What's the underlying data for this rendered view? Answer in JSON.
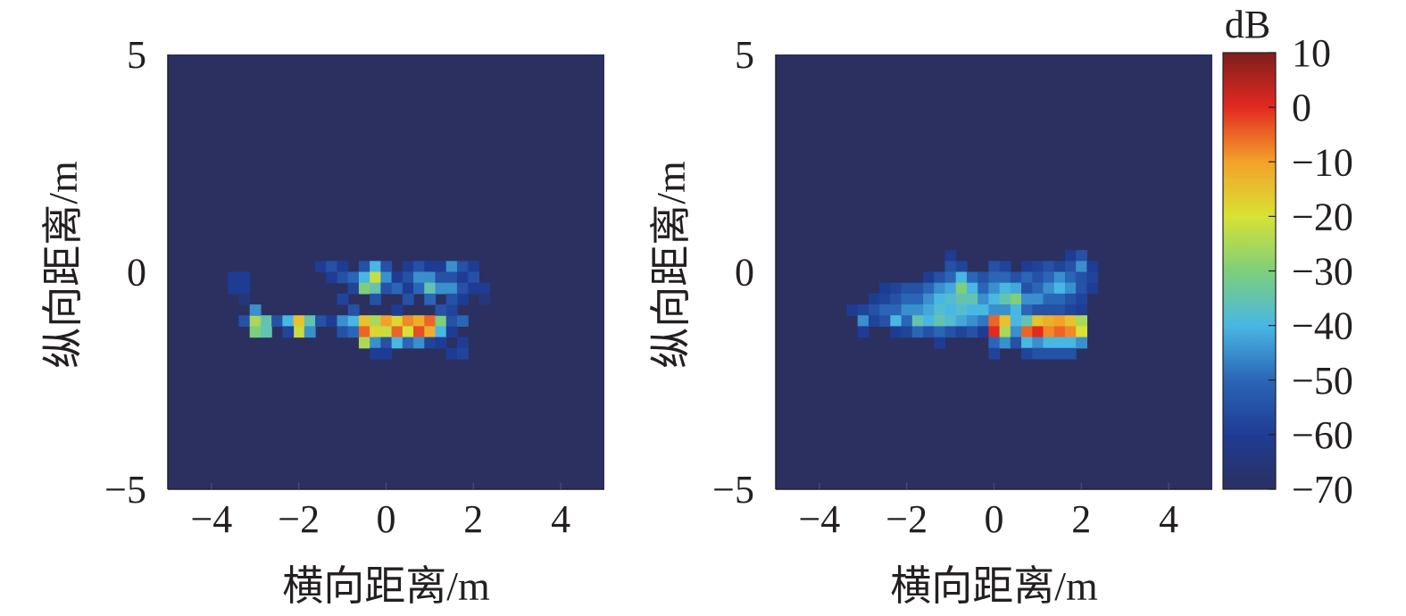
{
  "colorbar": {
    "unit": "dB",
    "min": -70,
    "max": 10,
    "ticks": [
      10,
      0,
      -10,
      -20,
      -30,
      -40,
      -50,
      -60,
      -70
    ],
    "tick_labels": [
      "10",
      "0",
      "−10",
      "−20",
      "−30",
      "−40",
      "−50",
      "−60",
      "−70"
    ],
    "colormap": "jet",
    "colors": [
      "#2b3060",
      "#1f3c94",
      "#2a66b7",
      "#49b7e3",
      "#7ecf7a",
      "#d8e234",
      "#f3a12a",
      "#e22a21",
      "#7e1e1c"
    ],
    "background_color": "#2b3060"
  },
  "chart_data": [
    {
      "type": "heatmap",
      "xlabel": "横向距离/m",
      "ylabel": "纵向距离/m",
      "xlim": [
        -5,
        5
      ],
      "ylim": [
        -5,
        5
      ],
      "xticks": [
        -4,
        -2,
        0,
        2,
        4
      ],
      "xtick_labels": [
        "−4",
        "−2",
        "0",
        "2",
        "4"
      ],
      "yticks": [
        5,
        0,
        -5
      ],
      "ytick_labels": [
        "5",
        "0",
        "−5"
      ],
      "cell_size": 0.25,
      "background_value": -70,
      "cells": [
        [
          -3.5,
          -0.375,
          -60
        ],
        [
          -3.5,
          -0.125,
          -60
        ],
        [
          -3.25,
          -0.375,
          -60
        ],
        [
          -3.25,
          -0.125,
          -60
        ],
        [
          -3.25,
          -0.625,
          -65
        ],
        [
          -3.25,
          -1.125,
          -55
        ],
        [
          -3.0,
          -1.125,
          -25
        ],
        [
          -3.0,
          -1.375,
          -30
        ],
        [
          -2.75,
          -1.125,
          -35
        ],
        [
          -2.75,
          -1.375,
          -35
        ],
        [
          -3.0,
          -0.875,
          -45
        ],
        [
          -2.5,
          -1.125,
          -55
        ],
        [
          -2.25,
          -1.125,
          -40
        ],
        [
          -2.0,
          -1.125,
          -15
        ],
        [
          -2.0,
          -1.375,
          -22
        ],
        [
          -1.75,
          -1.125,
          -35
        ],
        [
          -1.75,
          -1.375,
          -45
        ],
        [
          -1.5,
          -1.125,
          -55
        ],
        [
          -1.25,
          -1.125,
          -60
        ],
        [
          -1.0,
          -1.125,
          -45
        ],
        [
          -1.0,
          -1.375,
          -55
        ],
        [
          -0.75,
          -1.125,
          -40
        ],
        [
          -0.75,
          -1.375,
          -50
        ],
        [
          -0.5,
          -1.125,
          -15
        ],
        [
          -0.5,
          -1.375,
          -5
        ],
        [
          -0.5,
          -1.625,
          -25
        ],
        [
          -0.25,
          -1.125,
          -25
        ],
        [
          -0.25,
          -1.375,
          -18
        ],
        [
          -0.25,
          -1.625,
          -45
        ],
        [
          0.0,
          -1.125,
          -10
        ],
        [
          0.0,
          -1.375,
          -22
        ],
        [
          0.0,
          -1.625,
          -55
        ],
        [
          0.25,
          -1.125,
          -18
        ],
        [
          0.25,
          -1.375,
          -5
        ],
        [
          0.25,
          -1.625,
          -40
        ],
        [
          0.5,
          -1.125,
          -8
        ],
        [
          0.5,
          -1.375,
          -20
        ],
        [
          0.5,
          -1.625,
          -50
        ],
        [
          0.75,
          -1.125,
          -12
        ],
        [
          0.75,
          -1.375,
          -3
        ],
        [
          0.75,
          -1.625,
          -45
        ],
        [
          1.0,
          -1.125,
          -5
        ],
        [
          1.0,
          -1.375,
          -12
        ],
        [
          1.0,
          -1.625,
          -58
        ],
        [
          1.25,
          -1.125,
          -30
        ],
        [
          1.25,
          -1.375,
          -40
        ],
        [
          1.5,
          -1.125,
          -55
        ],
        [
          1.5,
          -1.375,
          -60
        ],
        [
          1.5,
          -0.875,
          -58
        ],
        [
          1.75,
          -1.125,
          -50
        ],
        [
          1.75,
          -1.625,
          -60
        ],
        [
          -1.5,
          0.125,
          -60
        ],
        [
          -1.25,
          0.125,
          -55
        ],
        [
          -1.0,
          0.125,
          -60
        ],
        [
          -1.25,
          -0.125,
          -60
        ],
        [
          -1.0,
          -0.125,
          -55
        ],
        [
          -0.75,
          -0.125,
          -50
        ],
        [
          -0.75,
          -0.375,
          -58
        ],
        [
          -0.5,
          0.125,
          -55
        ],
        [
          -0.5,
          -0.125,
          -40
        ],
        [
          -0.5,
          -0.375,
          -30
        ],
        [
          -0.25,
          0.125,
          -40
        ],
        [
          -0.25,
          -0.125,
          -22
        ],
        [
          -0.25,
          -0.375,
          -35
        ],
        [
          0.0,
          0.125,
          -55
        ],
        [
          0.0,
          -0.125,
          -45
        ],
        [
          0.0,
          -0.375,
          -55
        ],
        [
          0.25,
          -0.125,
          -60
        ],
        [
          0.25,
          -0.375,
          -50
        ],
        [
          0.5,
          0.125,
          -60
        ],
        [
          0.5,
          -0.125,
          -55
        ],
        [
          0.5,
          -0.375,
          -60
        ],
        [
          0.75,
          0.125,
          -55
        ],
        [
          0.75,
          -0.125,
          -45
        ],
        [
          0.75,
          -0.375,
          -50
        ],
        [
          1.0,
          0.125,
          -60
        ],
        [
          1.0,
          -0.125,
          -45
        ],
        [
          1.0,
          -0.375,
          -35
        ],
        [
          1.25,
          0.125,
          -60
        ],
        [
          1.25,
          -0.125,
          -55
        ],
        [
          1.25,
          -0.375,
          -45
        ],
        [
          1.5,
          0.125,
          -45
        ],
        [
          1.5,
          -0.125,
          -55
        ],
        [
          1.5,
          -0.375,
          -45
        ],
        [
          1.75,
          0.125,
          -55
        ],
        [
          1.75,
          -0.125,
          -60
        ],
        [
          1.75,
          -0.375,
          -55
        ],
        [
          1.75,
          -0.625,
          -60
        ],
        [
          2.0,
          0.125,
          -60
        ],
        [
          2.0,
          -0.125,
          -55
        ],
        [
          2.0,
          -0.375,
          -60
        ],
        [
          2.25,
          -0.375,
          -60
        ],
        [
          2.25,
          -0.625,
          -65
        ],
        [
          -1.0,
          -0.625,
          -58
        ],
        [
          -0.25,
          -0.625,
          -55
        ],
        [
          0.5,
          -0.625,
          -55
        ],
        [
          1.0,
          -0.625,
          -50
        ],
        [
          1.5,
          -0.625,
          -55
        ],
        [
          -0.75,
          -0.875,
          -55
        ],
        [
          0.25,
          -0.875,
          -60
        ],
        [
          1.25,
          -0.875,
          -55
        ],
        [
          -2.25,
          -1.375,
          -58
        ],
        [
          1.25,
          -1.625,
          -60
        ],
        [
          -0.25,
          -1.875,
          -60
        ],
        [
          0.0,
          -1.875,
          -60
        ],
        [
          1.5,
          -1.875,
          -60
        ],
        [
          1.75,
          -1.875,
          -58
        ]
      ]
    },
    {
      "type": "heatmap",
      "xlabel": "横向距离/m",
      "ylabel": "纵向距离/m",
      "xlim": [
        -5,
        5
      ],
      "ylim": [
        -5,
        5
      ],
      "xticks": [
        -4,
        -2,
        0,
        2,
        4
      ],
      "xtick_labels": [
        "−4",
        "−2",
        "0",
        "2",
        "4"
      ],
      "yticks": [
        5,
        0,
        -5
      ],
      "ytick_labels": [
        "5",
        "0",
        "−5"
      ],
      "cell_size": 0.25,
      "background_value": -70,
      "cells": [
        [
          -3.25,
          -0.875,
          -60
        ],
        [
          -3.0,
          -0.875,
          -58
        ],
        [
          -3.0,
          -1.125,
          -45
        ],
        [
          -3.0,
          -1.375,
          -60
        ],
        [
          -2.75,
          -0.625,
          -60
        ],
        [
          -2.75,
          -0.875,
          -55
        ],
        [
          -2.75,
          -1.125,
          -58
        ],
        [
          -2.5,
          -0.375,
          -60
        ],
        [
          -2.5,
          -0.625,
          -58
        ],
        [
          -2.5,
          -0.875,
          -50
        ],
        [
          -2.5,
          -1.125,
          -55
        ],
        [
          -2.25,
          -0.375,
          -58
        ],
        [
          -2.25,
          -0.625,
          -55
        ],
        [
          -2.25,
          -0.875,
          -50
        ],
        [
          -2.25,
          -1.125,
          -40
        ],
        [
          -2.25,
          -1.375,
          -60
        ],
        [
          -2.0,
          -0.375,
          -55
        ],
        [
          -2.0,
          -0.625,
          -50
        ],
        [
          -2.0,
          -0.875,
          -45
        ],
        [
          -2.0,
          -1.125,
          -50
        ],
        [
          -2.0,
          -1.375,
          -58
        ],
        [
          -1.75,
          -0.375,
          -55
        ],
        [
          -1.75,
          -0.625,
          -50
        ],
        [
          -1.75,
          -0.875,
          -45
        ],
        [
          -1.75,
          -1.125,
          -35
        ],
        [
          -1.75,
          -1.375,
          -50
        ],
        [
          -1.5,
          -0.125,
          -60
        ],
        [
          -1.5,
          -0.375,
          -50
        ],
        [
          -1.5,
          -0.625,
          -45
        ],
        [
          -1.5,
          -0.875,
          -42
        ],
        [
          -1.5,
          -1.125,
          -40
        ],
        [
          -1.5,
          -1.375,
          -55
        ],
        [
          -1.25,
          -0.125,
          -55
        ],
        [
          -1.25,
          -0.375,
          -45
        ],
        [
          -1.25,
          -0.625,
          -40
        ],
        [
          -1.25,
          -0.875,
          -38
        ],
        [
          -1.25,
          -1.125,
          -35
        ],
        [
          -1.25,
          -1.375,
          -50
        ],
        [
          -1.25,
          -1.625,
          -60
        ],
        [
          -1.0,
          0.375,
          -60
        ],
        [
          -1.0,
          0.125,
          -55
        ],
        [
          -1.0,
          -0.125,
          -50
        ],
        [
          -1.0,
          -0.375,
          -42
        ],
        [
          -1.0,
          -0.625,
          -38
        ],
        [
          -1.0,
          -0.875,
          -40
        ],
        [
          -1.0,
          -1.125,
          -38
        ],
        [
          -1.0,
          -1.375,
          -55
        ],
        [
          -0.75,
          0.125,
          -58
        ],
        [
          -0.75,
          -0.125,
          -40
        ],
        [
          -0.75,
          -0.375,
          -30
        ],
        [
          -0.75,
          -0.625,
          -35
        ],
        [
          -0.75,
          -0.875,
          -38
        ],
        [
          -0.75,
          -1.125,
          -42
        ],
        [
          -0.75,
          -1.375,
          -58
        ],
        [
          -0.5,
          -0.125,
          -50
        ],
        [
          -0.5,
          -0.375,
          -40
        ],
        [
          -0.5,
          -0.625,
          -35
        ],
        [
          -0.5,
          -0.875,
          -40
        ],
        [
          -0.5,
          -1.125,
          -45
        ],
        [
          -0.5,
          -1.375,
          -55
        ],
        [
          -0.25,
          -0.125,
          -55
        ],
        [
          -0.25,
          -0.375,
          -50
        ],
        [
          -0.25,
          -0.625,
          -45
        ],
        [
          -0.25,
          -0.875,
          -40
        ],
        [
          -0.25,
          -1.125,
          -48
        ],
        [
          -0.25,
          -1.375,
          -60
        ],
        [
          0.0,
          0.125,
          -55
        ],
        [
          0.0,
          -0.125,
          -50
        ],
        [
          0.0,
          -0.375,
          -45
        ],
        [
          0.0,
          -0.625,
          -40
        ],
        [
          0.0,
          -0.875,
          -45
        ],
        [
          0.0,
          -1.125,
          -5
        ],
        [
          0.0,
          -1.375,
          0
        ],
        [
          0.0,
          -1.625,
          -50
        ],
        [
          0.0,
          -1.875,
          -58
        ],
        [
          0.25,
          0.125,
          -58
        ],
        [
          0.25,
          -0.125,
          -50
        ],
        [
          0.25,
          -0.375,
          -40
        ],
        [
          0.25,
          -0.625,
          -35
        ],
        [
          0.25,
          -0.875,
          -45
        ],
        [
          0.25,
          -1.125,
          -15
        ],
        [
          0.25,
          -1.375,
          -25
        ],
        [
          0.25,
          -1.625,
          -45
        ],
        [
          0.5,
          -0.125,
          -55
        ],
        [
          0.5,
          -0.375,
          -42
        ],
        [
          0.5,
          -0.625,
          -30
        ],
        [
          0.5,
          -0.875,
          -40
        ],
        [
          0.5,
          -1.125,
          -40
        ],
        [
          0.5,
          -1.375,
          -45
        ],
        [
          0.5,
          -1.625,
          -55
        ],
        [
          0.75,
          0.125,
          -60
        ],
        [
          0.75,
          -0.125,
          -50
        ],
        [
          0.75,
          -0.375,
          -55
        ],
        [
          0.75,
          -0.625,
          -45
        ],
        [
          0.75,
          -0.875,
          -50
        ],
        [
          0.75,
          -1.125,
          -35
        ],
        [
          0.75,
          -1.375,
          -5
        ],
        [
          0.75,
          -1.625,
          -40
        ],
        [
          0.75,
          -1.875,
          -58
        ],
        [
          1.0,
          0.125,
          -58
        ],
        [
          1.0,
          -0.125,
          -55
        ],
        [
          1.0,
          -0.375,
          -50
        ],
        [
          1.0,
          -0.625,
          -45
        ],
        [
          1.0,
          -0.875,
          -55
        ],
        [
          1.0,
          -1.125,
          -15
        ],
        [
          1.0,
          -1.375,
          0
        ],
        [
          1.0,
          -1.625,
          -45
        ],
        [
          1.0,
          -1.875,
          -55
        ],
        [
          1.25,
          0.125,
          -55
        ],
        [
          1.25,
          -0.125,
          -50
        ],
        [
          1.25,
          -0.375,
          -45
        ],
        [
          1.25,
          -0.625,
          -50
        ],
        [
          1.25,
          -0.875,
          -55
        ],
        [
          1.25,
          -1.125,
          -12
        ],
        [
          1.25,
          -1.375,
          -8
        ],
        [
          1.25,
          -1.625,
          -40
        ],
        [
          1.25,
          -1.875,
          -55
        ],
        [
          1.5,
          0.125,
          -58
        ],
        [
          1.5,
          -0.125,
          -45
        ],
        [
          1.5,
          -0.375,
          -40
        ],
        [
          1.5,
          -0.625,
          -50
        ],
        [
          1.5,
          -0.875,
          -55
        ],
        [
          1.5,
          -1.125,
          -10
        ],
        [
          1.5,
          -1.375,
          -5
        ],
        [
          1.5,
          -1.625,
          -40
        ],
        [
          1.5,
          -1.875,
          -55
        ],
        [
          1.75,
          0.375,
          -60
        ],
        [
          1.75,
          0.125,
          -55
        ],
        [
          1.75,
          -0.125,
          -50
        ],
        [
          1.75,
          -0.375,
          -45
        ],
        [
          1.75,
          -0.625,
          -55
        ],
        [
          1.75,
          -0.875,
          -58
        ],
        [
          1.75,
          -1.125,
          -15
        ],
        [
          1.75,
          -1.375,
          -8
        ],
        [
          1.75,
          -1.625,
          -40
        ],
        [
          1.75,
          -1.875,
          -55
        ],
        [
          2.0,
          0.375,
          -55
        ],
        [
          2.0,
          0.125,
          -45
        ],
        [
          2.0,
          -0.125,
          -55
        ],
        [
          2.0,
          -0.375,
          -55
        ],
        [
          2.0,
          -0.625,
          -58
        ],
        [
          2.0,
          -0.875,
          -60
        ],
        [
          2.0,
          -1.125,
          -25
        ],
        [
          2.0,
          -1.375,
          -20
        ],
        [
          2.0,
          -1.625,
          -45
        ],
        [
          2.25,
          0.125,
          -60
        ],
        [
          2.25,
          -0.125,
          -58
        ],
        [
          2.25,
          -0.375,
          -60
        ]
      ]
    }
  ]
}
